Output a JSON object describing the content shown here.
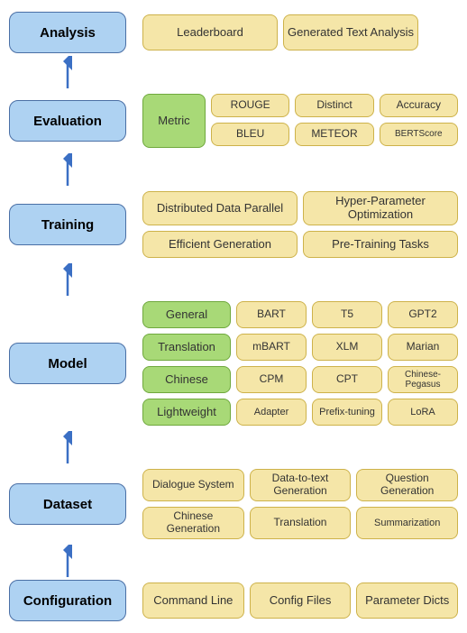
{
  "colors": {
    "stage_fill": "#aed2f2",
    "stage_border": "#4a6fa5",
    "stage_text": "#000000",
    "yellow_fill": "#f5e6a8",
    "yellow_border": "#cdb24a",
    "yellow_text": "#333333",
    "green_fill": "#a8d977",
    "green_border": "#6fa83d",
    "green_text": "#333333",
    "arrow": "#3b6fc4",
    "bg": "#ffffff"
  },
  "layout": {
    "stage_width": 130,
    "stage_height": 46,
    "arrow_height": 40,
    "small_box_height": 30,
    "med_box_height": 36,
    "gap": 6
  },
  "stages": {
    "analysis": "Analysis",
    "evaluation": "Evaluation",
    "training": "Training",
    "model": "Model",
    "dataset": "Dataset",
    "configuration": "Configuration"
  },
  "analysis": {
    "leaderboard": "Leaderboard",
    "gentext": "Generated Text Analysis"
  },
  "evaluation": {
    "metric": "Metric",
    "rouge": "ROUGE",
    "distinct": "Distinct",
    "accuracy": "Accuracy",
    "bleu": "BLEU",
    "meteor": "METEOR",
    "bertscore": "BERTScore"
  },
  "training": {
    "ddp": "Distributed Data Parallel",
    "hpo": "Hyper-Parameter Optimization",
    "effgen": "Efficient Generation",
    "pretrain": "Pre-Training Tasks"
  },
  "model": {
    "general": "General",
    "bart": "BART",
    "t5": "T5",
    "gpt2": "GPT2",
    "translation": "Translation",
    "mbart": "mBART",
    "xlm": "XLM",
    "marian": "Marian",
    "chinese": "Chinese",
    "cpm": "CPM",
    "cpt": "CPT",
    "cpeg": "Chinese-Pegasus",
    "lightweight": "Lightweight",
    "adapter": "Adapter",
    "prefix": "Prefix-tuning",
    "lora": "LoRA"
  },
  "dataset": {
    "dialogue": "Dialogue System",
    "d2t": "Data-to-text Generation",
    "qg": "Question Generation",
    "cgen": "Chinese Generation",
    "trans": "Translation",
    "summ": "Summarization"
  },
  "configuration": {
    "cmd": "Command Line",
    "cfg": "Config Files",
    "param": "Parameter Dicts"
  }
}
